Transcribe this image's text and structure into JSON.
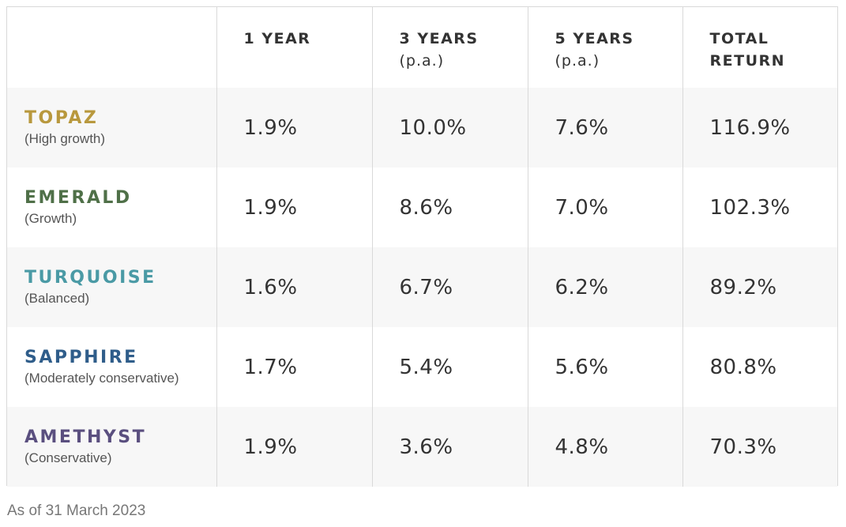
{
  "header": {
    "col_1": "1 YEAR",
    "col_2": "3 YEARS",
    "col_2_sub": "(p.a.)",
    "col_3": "5 YEARS",
    "col_3_sub": "(p.a.)",
    "col_4_line1": "TOTAL",
    "col_4_line2": "RETURN"
  },
  "rows": [
    {
      "name": "TOPAZ",
      "desc": "(High growth)",
      "color": "#b8983d",
      "one_year": "1.9%",
      "three_years": "10.0%",
      "five_years": "7.6%",
      "total_return": "116.9%"
    },
    {
      "name": "EMERALD",
      "desc": "(Growth)",
      "color": "#4f7048",
      "one_year": "1.9%",
      "three_years": "8.6%",
      "five_years": "7.0%",
      "total_return": "102.3%"
    },
    {
      "name": "TURQUOISE",
      "desc": "(Balanced)",
      "color": "#4a9aa5",
      "one_year": "1.6%",
      "three_years": "6.7%",
      "five_years": "6.2%",
      "total_return": "89.2%"
    },
    {
      "name": "SAPPHIRE",
      "desc": "(Moderately conservative)",
      "color": "#2f5d8a",
      "one_year": "1.7%",
      "three_years": "5.4%",
      "five_years": "5.6%",
      "total_return": "80.8%"
    },
    {
      "name": "AMETHYST",
      "desc": "(Conservative)",
      "color": "#5a4f7f",
      "one_year": "1.9%",
      "three_years": "3.6%",
      "five_years": "4.8%",
      "total_return": "70.3%"
    }
  ],
  "footnote": "As of 31 March 2023"
}
